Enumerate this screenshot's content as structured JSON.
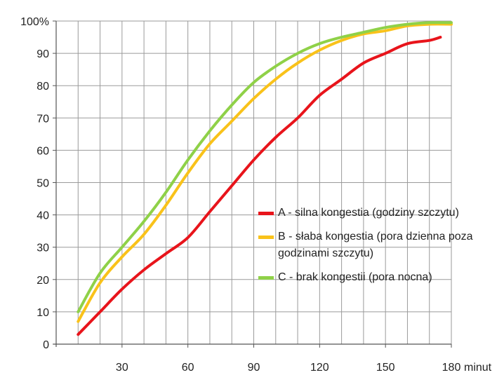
{
  "chart_data": {
    "type": "line",
    "x_unit_label": "minut",
    "xlim": [
      0,
      180
    ],
    "ylim": [
      0,
      100
    ],
    "grid": true,
    "legend_position": "right",
    "x_ticks": [
      30,
      60,
      90,
      120,
      150,
      180
    ],
    "x_tick_labels": [
      "30",
      "60",
      "90",
      "120",
      "150",
      "180"
    ],
    "y_ticks": [
      0,
      10,
      20,
      30,
      40,
      50,
      60,
      70,
      80,
      90,
      100
    ],
    "y_tick_labels": [
      "0",
      "10",
      "20",
      "30",
      "40",
      "50",
      "60",
      "70",
      "80",
      "90",
      "100%"
    ],
    "series": [
      {
        "name": "A - silna kongestia (godziny szczytu)",
        "color": "#e8141b",
        "x": [
          10,
          20,
          30,
          40,
          50,
          60,
          70,
          80,
          90,
          100,
          110,
          120,
          130,
          140,
          150,
          160,
          170,
          175
        ],
        "y": [
          3,
          10,
          17,
          23,
          28,
          33,
          41,
          49,
          57,
          64,
          70,
          77,
          82,
          87,
          90,
          93,
          94,
          95
        ]
      },
      {
        "name": "B - słaba kongestia (pora dzienna poza godzinami szczytu)",
        "color": "#f9c21a",
        "x": [
          10,
          20,
          30,
          40,
          50,
          60,
          70,
          80,
          90,
          100,
          110,
          120,
          130,
          140,
          150,
          160,
          170,
          180
        ],
        "y": [
          7,
          19,
          27,
          34,
          43,
          53,
          62,
          69,
          76,
          82,
          87,
          91,
          94,
          96,
          97,
          98.5,
          99,
          99
        ]
      },
      {
        "name": "C - brak kongestii (pora nocna)",
        "color": "#8fd148",
        "x": [
          10,
          20,
          30,
          40,
          50,
          60,
          70,
          80,
          90,
          100,
          110,
          120,
          130,
          140,
          150,
          160,
          170,
          180
        ],
        "y": [
          10,
          22,
          30,
          38,
          47,
          57,
          66,
          74,
          81,
          86,
          90,
          93,
          95,
          96.5,
          98,
          99,
          99.5,
          99.5
        ]
      }
    ]
  }
}
